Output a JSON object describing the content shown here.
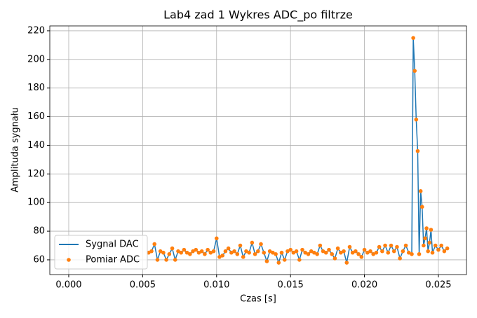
{
  "chart_data": {
    "type": "line",
    "title": "Lab4 zad 1 Wykres ADC_po filtrze",
    "x_label": "Czas [s]",
    "y_label": "Amplituda sygnału",
    "xlim": [
      -0.00128,
      0.0269
    ],
    "ylim": [
      49.7,
      223.4
    ],
    "xticks": [
      {
        "value": 0,
        "label": "0.000"
      },
      {
        "value": 0.005,
        "label": "0.005"
      },
      {
        "value": 0.01,
        "label": "0.010"
      },
      {
        "value": 0.015,
        "label": "0.015"
      },
      {
        "value": 0.02,
        "label": "0.020"
      },
      {
        "value": 0.025,
        "label": "0.025"
      }
    ],
    "yticks": [
      60,
      80,
      100,
      120,
      140,
      160,
      180,
      200,
      220
    ],
    "grid": true,
    "legend": "lower left",
    "x": [
      0.0054,
      0.0056,
      0.0058,
      0.006,
      0.0062,
      0.0064,
      0.0066,
      0.0068,
      0.007,
      0.0072,
      0.0074,
      0.0076,
      0.0078,
      0.008,
      0.0082,
      0.0084,
      0.0086,
      0.0088,
      0.009,
      0.0092,
      0.0094,
      0.0096,
      0.0098,
      0.01,
      0.0102,
      0.0104,
      0.0106,
      0.0108,
      0.011,
      0.0112,
      0.0114,
      0.0116,
      0.0118,
      0.012,
      0.0122,
      0.0124,
      0.0126,
      0.0128,
      0.013,
      0.0132,
      0.0134,
      0.0136,
      0.0138,
      0.014,
      0.0142,
      0.0144,
      0.0146,
      0.0148,
      0.015,
      0.0152,
      0.0154,
      0.0156,
      0.0158,
      0.016,
      0.0162,
      0.0164,
      0.0166,
      0.0168,
      0.017,
      0.0172,
      0.0174,
      0.0176,
      0.0178,
      0.018,
      0.0182,
      0.0184,
      0.0186,
      0.0188,
      0.019,
      0.0192,
      0.0194,
      0.0196,
      0.0198,
      0.02,
      0.0202,
      0.0204,
      0.0206,
      0.0208,
      0.021,
      0.0212,
      0.0214,
      0.0216,
      0.0218,
      0.022,
      0.0222,
      0.0224,
      0.0226,
      0.0228,
      0.023,
      0.0232,
      0.0233,
      0.0234,
      0.0235,
      0.0236,
      0.0237,
      0.0238,
      0.0239,
      0.024,
      0.0241,
      0.0242,
      0.0243,
      0.0244,
      0.0245,
      0.0246,
      0.0248,
      0.025,
      0.0252,
      0.0254,
      0.0256
    ],
    "series": [
      {
        "name": "Sygnal DAC",
        "color": "#1f77b4",
        "style": "line",
        "values": [
          65,
          66,
          71,
          60,
          66,
          65,
          60,
          64,
          68,
          60,
          66,
          65,
          67,
          65,
          64,
          66,
          67,
          65,
          66,
          64,
          67,
          65,
          66,
          75,
          62,
          63,
          66,
          68,
          65,
          66,
          64,
          70,
          62,
          66,
          65,
          72,
          64,
          66,
          71,
          65,
          59,
          66,
          65,
          64,
          58,
          65,
          60,
          66,
          67,
          65,
          66,
          60,
          67,
          65,
          64,
          66,
          65,
          64,
          70,
          66,
          65,
          67,
          64,
          61,
          68,
          65,
          66,
          58,
          69,
          65,
          66,
          64,
          62,
          67,
          65,
          66,
          64,
          65,
          69,
          66,
          70,
          65,
          70,
          66,
          69,
          61,
          66,
          70,
          65,
          64,
          215,
          192,
          158,
          136,
          64,
          108,
          97,
          70,
          75,
          82,
          66,
          72,
          81,
          65,
          70,
          67,
          70,
          66,
          68
        ]
      },
      {
        "name": "Pomiar ADC",
        "color": "#ff7f0e",
        "style": "points",
        "values": [
          65,
          66,
          71,
          60,
          66,
          65,
          60,
          64,
          68,
          60,
          66,
          65,
          67,
          65,
          64,
          66,
          67,
          65,
          66,
          64,
          67,
          65,
          66,
          75,
          62,
          63,
          66,
          68,
          65,
          66,
          64,
          70,
          62,
          66,
          65,
          72,
          64,
          66,
          71,
          65,
          59,
          66,
          65,
          64,
          58,
          65,
          60,
          66,
          67,
          65,
          66,
          60,
          67,
          65,
          64,
          66,
          65,
          64,
          70,
          66,
          65,
          67,
          64,
          61,
          68,
          65,
          66,
          58,
          69,
          65,
          66,
          64,
          62,
          67,
          65,
          66,
          64,
          65,
          69,
          66,
          70,
          65,
          70,
          66,
          69,
          61,
          66,
          70,
          65,
          64,
          215,
          192,
          158,
          136,
          64,
          108,
          97,
          70,
          75,
          82,
          66,
          72,
          81,
          65,
          70,
          67,
          70,
          66,
          68
        ]
      }
    ]
  }
}
